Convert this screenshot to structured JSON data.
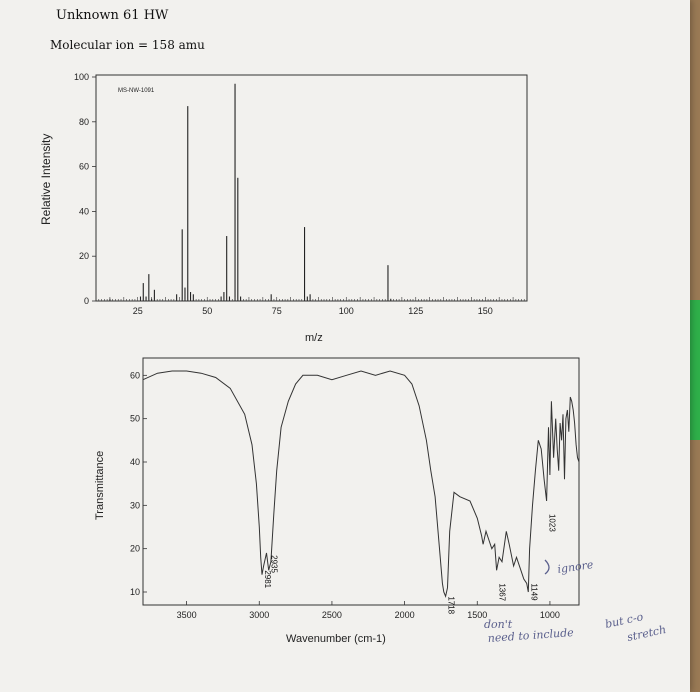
{
  "header": {
    "title": "Unknown 61 HW",
    "molecular_ion": "Molecular ion = 158 amu"
  },
  "chart_data": [
    {
      "type": "bar",
      "title": "MS-NW-1091",
      "xlabel": "m/z",
      "ylabel": "Relative Intensity",
      "xlim": [
        10,
        165
      ],
      "ylim": [
        0,
        100
      ],
      "x_ticks": [
        25,
        50,
        75,
        100,
        125,
        150
      ],
      "y_ticks": [
        0,
        20,
        40,
        60,
        80,
        100
      ],
      "peaks": [
        {
          "x": 15,
          "y": 1
        },
        {
          "x": 26,
          "y": 2
        },
        {
          "x": 27,
          "y": 8
        },
        {
          "x": 28,
          "y": 2
        },
        {
          "x": 29,
          "y": 12
        },
        {
          "x": 30,
          "y": 1
        },
        {
          "x": 31,
          "y": 5
        },
        {
          "x": 39,
          "y": 3
        },
        {
          "x": 41,
          "y": 32
        },
        {
          "x": 42,
          "y": 6
        },
        {
          "x": 43,
          "y": 87
        },
        {
          "x": 44,
          "y": 4
        },
        {
          "x": 45,
          "y": 3
        },
        {
          "x": 55,
          "y": 2
        },
        {
          "x": 56,
          "y": 4
        },
        {
          "x": 57,
          "y": 29
        },
        {
          "x": 58,
          "y": 2
        },
        {
          "x": 60,
          "y": 97
        },
        {
          "x": 61,
          "y": 55
        },
        {
          "x": 62,
          "y": 2
        },
        {
          "x": 73,
          "y": 3
        },
        {
          "x": 85,
          "y": 33
        },
        {
          "x": 86,
          "y": 2
        },
        {
          "x": 87,
          "y": 3
        },
        {
          "x": 115,
          "y": 16
        },
        {
          "x": 116,
          "y": 1
        }
      ]
    },
    {
      "type": "line",
      "xlabel": "Wavenumber (cm-1)",
      "ylabel": "Transmittance",
      "xlim": [
        3800,
        800
      ],
      "ylim": [
        7,
        64
      ],
      "x_ticks": [
        3500,
        3000,
        2500,
        2000,
        1500,
        1000
      ],
      "y_ticks": [
        10,
        20,
        30,
        40,
        50,
        60
      ],
      "series": [
        {
          "x": [
            3800,
            3700,
            3600,
            3500,
            3400,
            3300,
            3200,
            3100,
            3050,
            3020,
            3000,
            2990,
            2981,
            2970,
            2950,
            2935,
            2920,
            2900,
            2880,
            2850,
            2800,
            2750,
            2700,
            2650,
            2600,
            2500,
            2400,
            2300,
            2200,
            2100,
            2000,
            1950,
            1900,
            1850,
            1820,
            1790,
            1760,
            1740,
            1730,
            1718,
            1705,
            1690,
            1660,
            1620,
            1550,
            1500,
            1470,
            1460,
            1440,
            1420,
            1400,
            1380,
            1367,
            1350,
            1330,
            1300,
            1280,
            1250,
            1230,
            1200,
            1180,
            1160,
            1149,
            1140,
            1120,
            1100,
            1080,
            1060,
            1040,
            1023,
            1010,
            1000,
            990,
            975,
            960,
            950,
            940,
            930,
            920,
            910,
            900,
            890,
            880,
            870,
            860,
            850,
            840,
            830,
            820,
            810,
            800
          ],
          "y": [
            59,
            60.5,
            61,
            61,
            60.5,
            59.5,
            57,
            51,
            44,
            35,
            25,
            18,
            14,
            16,
            19,
            15,
            17,
            28,
            38,
            48,
            54,
            58,
            60,
            60,
            60,
            59,
            60,
            61,
            60,
            61,
            60,
            58,
            53,
            45,
            38,
            32,
            20,
            12,
            10,
            9,
            11,
            24,
            33,
            32,
            31,
            27,
            23,
            21,
            24,
            22,
            20,
            21,
            15,
            18,
            17,
            24,
            21,
            16,
            18,
            15,
            13,
            12,
            10,
            20,
            30,
            38,
            45,
            43,
            36,
            31,
            48,
            37,
            54,
            41,
            50,
            43,
            38,
            49,
            45,
            51,
            36,
            50,
            52,
            47,
            55,
            54,
            52,
            49,
            44,
            41,
            40
          ]
        }
      ],
      "annotations": [
        "2935",
        "2981",
        "1718",
        "1367",
        "1149",
        "1023"
      ]
    }
  ],
  "handwriting": {
    "ignore": "ignore",
    "dont_need": "don't",
    "need_to_include": "need to include",
    "but_co": "but c-o",
    "stretch": "stretch"
  }
}
